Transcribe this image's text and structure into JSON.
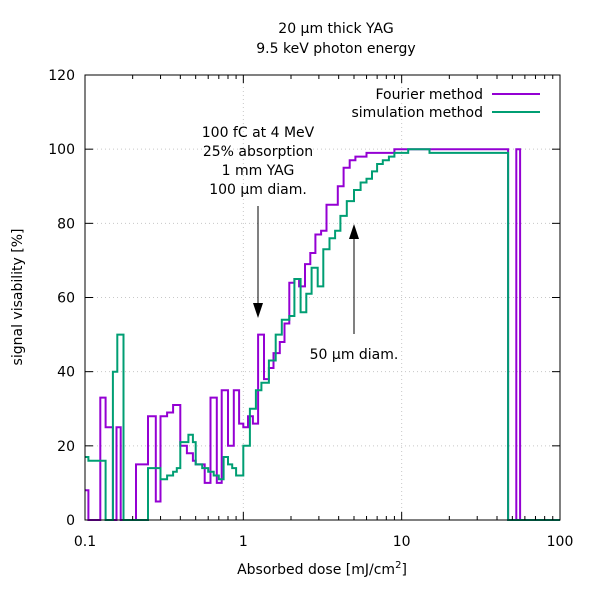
{
  "chart_data": {
    "type": "line",
    "step": true,
    "title": "20 µm thick YAG",
    "subtitle": "9.5 keV photon energy",
    "xlabel_main": "Absorbed dose [mJ/cm",
    "xlabel_sup": "2",
    "xlabel_end": "]",
    "ylabel": "signal visability [%]",
    "xscale": "log",
    "xlim": [
      0.1,
      100
    ],
    "ylim": [
      0,
      120
    ],
    "grid": true,
    "legend_position": "top-right",
    "x_ticks": [
      {
        "value": 0.1,
        "label": "0.1"
      },
      {
        "value": 1,
        "label": "1"
      },
      {
        "value": 10,
        "label": "10"
      },
      {
        "value": 100,
        "label": "100"
      }
    ],
    "y_ticks": [
      {
        "value": 0,
        "label": "0"
      },
      {
        "value": 20,
        "label": "20"
      },
      {
        "value": 40,
        "label": "40"
      },
      {
        "value": 60,
        "label": "60"
      },
      {
        "value": 80,
        "label": "80"
      },
      {
        "value": 100,
        "label": "100"
      },
      {
        "value": 120,
        "label": "120"
      }
    ],
    "series": [
      {
        "name": "Fourier method",
        "color": "#9400d3",
        "x": [
          0.1,
          0.105,
          0.125,
          0.135,
          0.15,
          0.158,
          0.168,
          0.21,
          0.25,
          0.28,
          0.3,
          0.33,
          0.36,
          0.4,
          0.44,
          0.48,
          0.5,
          0.53,
          0.57,
          0.62,
          0.68,
          0.73,
          0.8,
          0.87,
          0.94,
          1.0,
          1.07,
          1.15,
          1.24,
          1.35,
          1.45,
          1.55,
          1.7,
          1.82,
          1.95,
          2.1,
          2.25,
          2.45,
          2.65,
          2.85,
          3.1,
          3.35,
          3.6,
          3.95,
          4.3,
          4.7,
          5.1,
          5.5,
          6.0,
          6.6,
          7.2,
          8.0,
          9.0,
          10.0,
          12.0,
          14.0,
          16.0,
          47.0,
          53.0,
          56.0,
          60.0,
          100.0
        ],
        "y": [
          8,
          0,
          33,
          25,
          0,
          25,
          0,
          15,
          28,
          5,
          28,
          29,
          31,
          20,
          18,
          16,
          15,
          15,
          10,
          33,
          10,
          35,
          20,
          35,
          26,
          25,
          28,
          26,
          50,
          38,
          41,
          45,
          48,
          53,
          64,
          65,
          63,
          69,
          72,
          77,
          78,
          85,
          85,
          90,
          95,
          97,
          98,
          98,
          99,
          99,
          99,
          99,
          100,
          100,
          100,
          100,
          100,
          0,
          100,
          0,
          0,
          0
        ]
      },
      {
        "name": "simulation method",
        "color": "#009e73",
        "x": [
          0.1,
          0.105,
          0.12,
          0.135,
          0.15,
          0.16,
          0.175,
          0.2,
          0.25,
          0.3,
          0.33,
          0.36,
          0.38,
          0.4,
          0.45,
          0.48,
          0.5,
          0.55,
          0.6,
          0.65,
          0.7,
          0.75,
          0.8,
          0.85,
          0.9,
          1.0,
          1.1,
          1.2,
          1.3,
          1.45,
          1.6,
          1.75,
          1.95,
          2.1,
          2.3,
          2.5,
          2.7,
          2.95,
          3.2,
          3.5,
          3.8,
          4.1,
          4.5,
          5.0,
          5.5,
          6.0,
          6.5,
          7.0,
          7.6,
          8.3,
          9.0,
          10.0,
          11.0,
          12.0,
          14.0,
          15.0,
          47.0,
          100.0
        ],
        "y": [
          17,
          16,
          16,
          0,
          40,
          50,
          0,
          0,
          14,
          11,
          12,
          13,
          14,
          21,
          23,
          21,
          15,
          14,
          13,
          12,
          11,
          17,
          15,
          14,
          12,
          20,
          30,
          35,
          37,
          43,
          50,
          54,
          55,
          65,
          56,
          61,
          68,
          63,
          73,
          76,
          78,
          82,
          86,
          89,
          91,
          92,
          94,
          96,
          97,
          98,
          99,
          99,
          100,
          100,
          100,
          99,
          0,
          0
        ]
      }
    ],
    "annotations": [
      {
        "lines": [
          "100 fC at 4 MeV",
          "25% absorption",
          "1 mm YAG",
          "100 µm diam."
        ],
        "arrow": "down"
      },
      {
        "lines": [
          "50 µm diam."
        ],
        "arrow": "up"
      }
    ]
  }
}
